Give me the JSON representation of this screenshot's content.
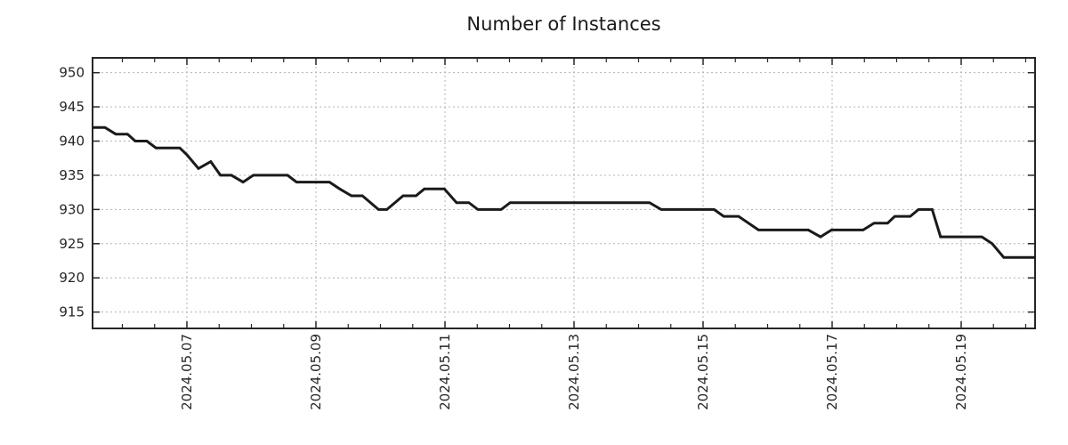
{
  "title": "Number of Instances",
  "colors": {
    "line": "#1a1a1a",
    "grid": "#b3b3b3",
    "axis": "#262626",
    "text": "#262626",
    "background": "#ffffff"
  },
  "chart_data": {
    "type": "line",
    "title": "Number of Instances",
    "xlabel": "",
    "ylabel": "",
    "legend_position": "none",
    "grid": "dashed gridlines at major ticks only",
    "x_unit": "days since 2024-05-05 00:00",
    "xlim": [
      0.538,
      15.145
    ],
    "ylim": [
      912.61,
      952.17
    ],
    "y_ticks": [
      915,
      920,
      925,
      930,
      935,
      940,
      945,
      950
    ],
    "x_major_ticks": [
      {
        "t": 2,
        "label": "2024.05.07"
      },
      {
        "t": 4,
        "label": "2024.05.09"
      },
      {
        "t": 6,
        "label": "2024.05.11"
      },
      {
        "t": 8,
        "label": "2024.05.13"
      },
      {
        "t": 10,
        "label": "2024.05.15"
      },
      {
        "t": 12,
        "label": "2024.05.17"
      },
      {
        "t": 14,
        "label": "2024.05.19"
      }
    ],
    "x_minor_tick_step": 0.5,
    "series": [
      {
        "name": "instances",
        "points": [
          [
            0.54,
            942
          ],
          [
            0.73,
            942
          ],
          [
            0.9,
            941
          ],
          [
            1.08,
            941
          ],
          [
            1.2,
            940
          ],
          [
            1.38,
            940
          ],
          [
            1.52,
            939
          ],
          [
            1.89,
            939
          ],
          [
            2.0,
            938
          ],
          [
            2.18,
            936
          ],
          [
            2.37,
            937
          ],
          [
            2.52,
            935
          ],
          [
            2.69,
            935
          ],
          [
            2.87,
            934
          ],
          [
            3.03,
            935
          ],
          [
            3.56,
            935
          ],
          [
            3.7,
            934
          ],
          [
            4.21,
            934
          ],
          [
            4.37,
            933
          ],
          [
            4.55,
            932
          ],
          [
            4.72,
            932
          ],
          [
            4.97,
            930
          ],
          [
            5.1,
            930
          ],
          [
            5.35,
            932
          ],
          [
            5.55,
            932
          ],
          [
            5.68,
            933
          ],
          [
            5.99,
            933
          ],
          [
            6.18,
            931
          ],
          [
            6.37,
            931
          ],
          [
            6.51,
            930
          ],
          [
            6.87,
            930
          ],
          [
            7.01,
            931
          ],
          [
            9.17,
            931
          ],
          [
            9.35,
            930
          ],
          [
            10.17,
            930
          ],
          [
            10.32,
            929
          ],
          [
            10.55,
            929
          ],
          [
            10.86,
            927
          ],
          [
            11.63,
            927
          ],
          [
            11.82,
            926
          ],
          [
            11.99,
            927
          ],
          [
            12.48,
            927
          ],
          [
            12.65,
            928
          ],
          [
            12.86,
            928
          ],
          [
            12.97,
            929
          ],
          [
            13.21,
            929
          ],
          [
            13.34,
            930
          ],
          [
            13.55,
            930
          ],
          [
            13.68,
            926
          ],
          [
            14.32,
            926
          ],
          [
            14.48,
            925
          ],
          [
            14.66,
            923
          ],
          [
            15.15,
            923
          ]
        ]
      }
    ]
  }
}
